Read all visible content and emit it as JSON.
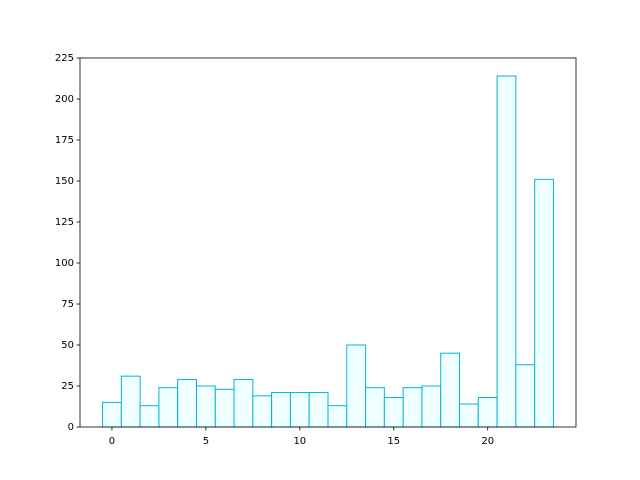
{
  "chart_data": {
    "type": "histogram",
    "bins": [
      -0.5,
      0.5,
      1.5,
      2.5,
      3.5,
      4.5,
      5.5,
      6.5,
      7.5,
      8.5,
      9.5,
      10.5,
      11.5,
      12.5,
      13.5,
      14.5,
      15.5,
      16.5,
      17.5,
      18.5,
      19.5,
      20.5,
      21.5,
      22.5,
      23.5
    ],
    "values": [
      15,
      31,
      13,
      24,
      29,
      25,
      23,
      29,
      19,
      21,
      21,
      21,
      13,
      50,
      24,
      18,
      24,
      25,
      45,
      14,
      18,
      214,
      38,
      151
    ],
    "color": "#f0ffff",
    "edgecolor": "#00b4e0",
    "xlim": [
      -1.7,
      24.7
    ],
    "xticks": [
      0,
      5,
      10,
      15,
      20
    ],
    "ylim": [
      0,
      225
    ],
    "yticks": [
      0,
      25,
      50,
      75,
      100,
      125,
      150,
      175,
      200,
      225
    ]
  }
}
